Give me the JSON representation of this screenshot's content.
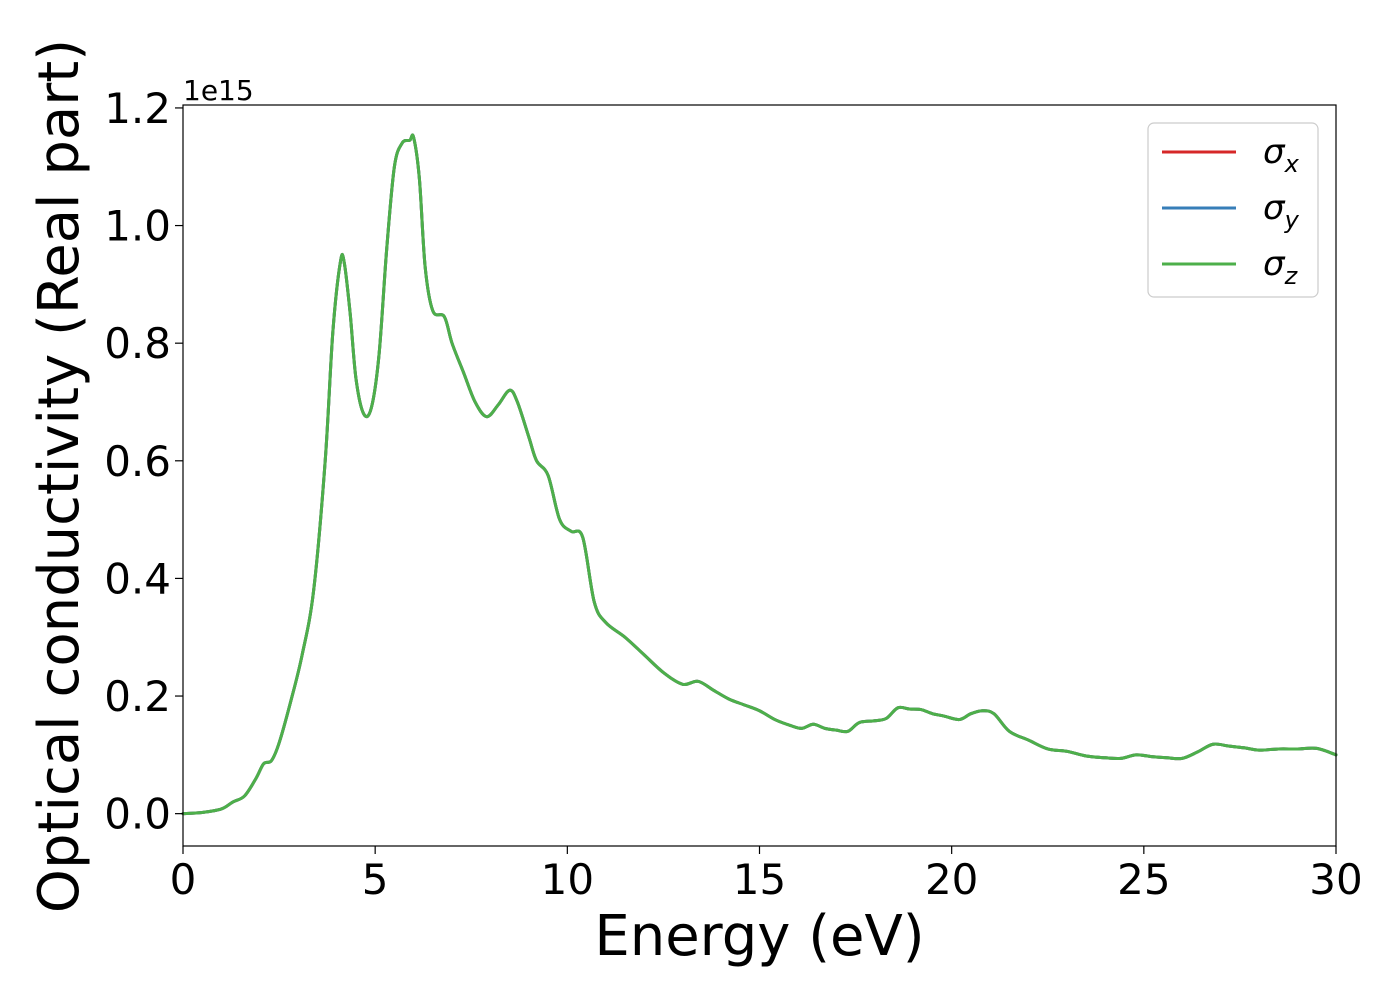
{
  "chart_data": {
    "type": "line",
    "title": "",
    "xlabel": "Energy (eV)",
    "ylabel": "Optical conductivity (Real part)",
    "y_offset_label": "1e15",
    "xlim": [
      0,
      30
    ],
    "ylim": [
      -0.055,
      1.205
    ],
    "x_ticks": [
      0,
      5,
      10,
      15,
      20,
      25,
      30
    ],
    "x_tick_labels": [
      "0",
      "5",
      "10",
      "15",
      "20",
      "25",
      "30"
    ],
    "y_ticks": [
      0.0,
      0.2,
      0.4,
      0.6,
      0.8,
      1.0,
      1.2
    ],
    "y_tick_labels": [
      "0.0",
      "0.2",
      "0.4",
      "0.6",
      "0.8",
      "1.0",
      "1.2"
    ],
    "grid": false,
    "legend_position": "top-right",
    "x": [
      0.0,
      0.5,
      1.0,
      1.3,
      1.6,
      1.9,
      2.1,
      2.3,
      2.5,
      2.8,
      3.1,
      3.4,
      3.7,
      3.9,
      4.1,
      4.2,
      4.35,
      4.5,
      4.7,
      4.9,
      5.1,
      5.3,
      5.5,
      5.7,
      5.9,
      6.0,
      6.15,
      6.3,
      6.5,
      6.8,
      7.0,
      7.3,
      7.6,
      7.9,
      8.2,
      8.5,
      8.7,
      9.0,
      9.2,
      9.5,
      9.8,
      10.1,
      10.4,
      10.7,
      11.0,
      11.5,
      12.0,
      12.5,
      13.0,
      13.4,
      13.8,
      14.2,
      14.6,
      15.0,
      15.4,
      15.8,
      16.1,
      16.4,
      16.7,
      17.0,
      17.3,
      17.6,
      18.0,
      18.3,
      18.6,
      18.9,
      19.2,
      19.5,
      19.8,
      20.2,
      20.5,
      20.8,
      21.1,
      21.5,
      22.0,
      22.5,
      23.0,
      23.5,
      24.0,
      24.4,
      24.8,
      25.2,
      25.6,
      26.0,
      26.4,
      26.8,
      27.2,
      27.6,
      28.0,
      28.5,
      29.0,
      29.5,
      30.0
    ],
    "series": [
      {
        "name": "σx",
        "color": "#d62728",
        "values": [
          0.0,
          0.002,
          0.008,
          0.02,
          0.03,
          0.06,
          0.085,
          0.09,
          0.12,
          0.19,
          0.27,
          0.38,
          0.6,
          0.82,
          0.94,
          0.935,
          0.85,
          0.74,
          0.68,
          0.69,
          0.78,
          0.96,
          1.1,
          1.14,
          1.145,
          1.15,
          1.08,
          0.93,
          0.855,
          0.845,
          0.8,
          0.75,
          0.7,
          0.675,
          0.695,
          0.72,
          0.7,
          0.64,
          0.6,
          0.575,
          0.5,
          0.48,
          0.47,
          0.36,
          0.325,
          0.3,
          0.27,
          0.24,
          0.22,
          0.225,
          0.21,
          0.195,
          0.185,
          0.175,
          0.16,
          0.15,
          0.145,
          0.152,
          0.145,
          0.142,
          0.14,
          0.155,
          0.158,
          0.162,
          0.18,
          0.178,
          0.177,
          0.17,
          0.166,
          0.16,
          0.17,
          0.175,
          0.17,
          0.14,
          0.125,
          0.11,
          0.106,
          0.098,
          0.095,
          0.094,
          0.1,
          0.097,
          0.095,
          0.094,
          0.105,
          0.118,
          0.115,
          0.112,
          0.108,
          0.11,
          0.11,
          0.111,
          0.1
        ]
      },
      {
        "name": "σy",
        "color": "#377eb8",
        "values": [
          0.0,
          0.002,
          0.008,
          0.02,
          0.03,
          0.06,
          0.085,
          0.09,
          0.12,
          0.19,
          0.27,
          0.38,
          0.6,
          0.82,
          0.94,
          0.935,
          0.85,
          0.74,
          0.68,
          0.69,
          0.78,
          0.96,
          1.1,
          1.14,
          1.145,
          1.15,
          1.08,
          0.93,
          0.855,
          0.845,
          0.8,
          0.75,
          0.7,
          0.675,
          0.695,
          0.72,
          0.7,
          0.64,
          0.6,
          0.575,
          0.5,
          0.48,
          0.47,
          0.36,
          0.325,
          0.3,
          0.27,
          0.24,
          0.22,
          0.225,
          0.21,
          0.195,
          0.185,
          0.175,
          0.16,
          0.15,
          0.145,
          0.152,
          0.145,
          0.142,
          0.14,
          0.155,
          0.158,
          0.162,
          0.18,
          0.178,
          0.177,
          0.17,
          0.166,
          0.16,
          0.17,
          0.175,
          0.17,
          0.14,
          0.125,
          0.11,
          0.106,
          0.098,
          0.095,
          0.094,
          0.1,
          0.097,
          0.095,
          0.094,
          0.105,
          0.118,
          0.115,
          0.112,
          0.108,
          0.11,
          0.11,
          0.111,
          0.1
        ]
      },
      {
        "name": "σz",
        "color": "#4daf4a",
        "values": [
          0.0,
          0.002,
          0.008,
          0.02,
          0.03,
          0.06,
          0.085,
          0.09,
          0.12,
          0.19,
          0.27,
          0.38,
          0.6,
          0.82,
          0.94,
          0.935,
          0.85,
          0.74,
          0.68,
          0.69,
          0.78,
          0.96,
          1.1,
          1.14,
          1.145,
          1.15,
          1.08,
          0.93,
          0.855,
          0.845,
          0.8,
          0.75,
          0.7,
          0.675,
          0.695,
          0.72,
          0.7,
          0.64,
          0.6,
          0.575,
          0.5,
          0.48,
          0.47,
          0.36,
          0.325,
          0.3,
          0.27,
          0.24,
          0.22,
          0.225,
          0.21,
          0.195,
          0.185,
          0.175,
          0.16,
          0.15,
          0.145,
          0.152,
          0.145,
          0.142,
          0.14,
          0.155,
          0.158,
          0.162,
          0.18,
          0.178,
          0.177,
          0.17,
          0.166,
          0.16,
          0.17,
          0.175,
          0.17,
          0.14,
          0.125,
          0.11,
          0.106,
          0.098,
          0.095,
          0.094,
          0.1,
          0.097,
          0.095,
          0.094,
          0.105,
          0.118,
          0.115,
          0.112,
          0.108,
          0.11,
          0.11,
          0.111,
          0.1
        ]
      }
    ],
    "legend": {
      "entries": [
        {
          "symbol": "σ",
          "subscript": "x",
          "color": "#d62728"
        },
        {
          "symbol": "σ",
          "subscript": "y",
          "color": "#377eb8"
        },
        {
          "symbol": "σ",
          "subscript": "z",
          "color": "#4daf4a"
        }
      ]
    }
  }
}
